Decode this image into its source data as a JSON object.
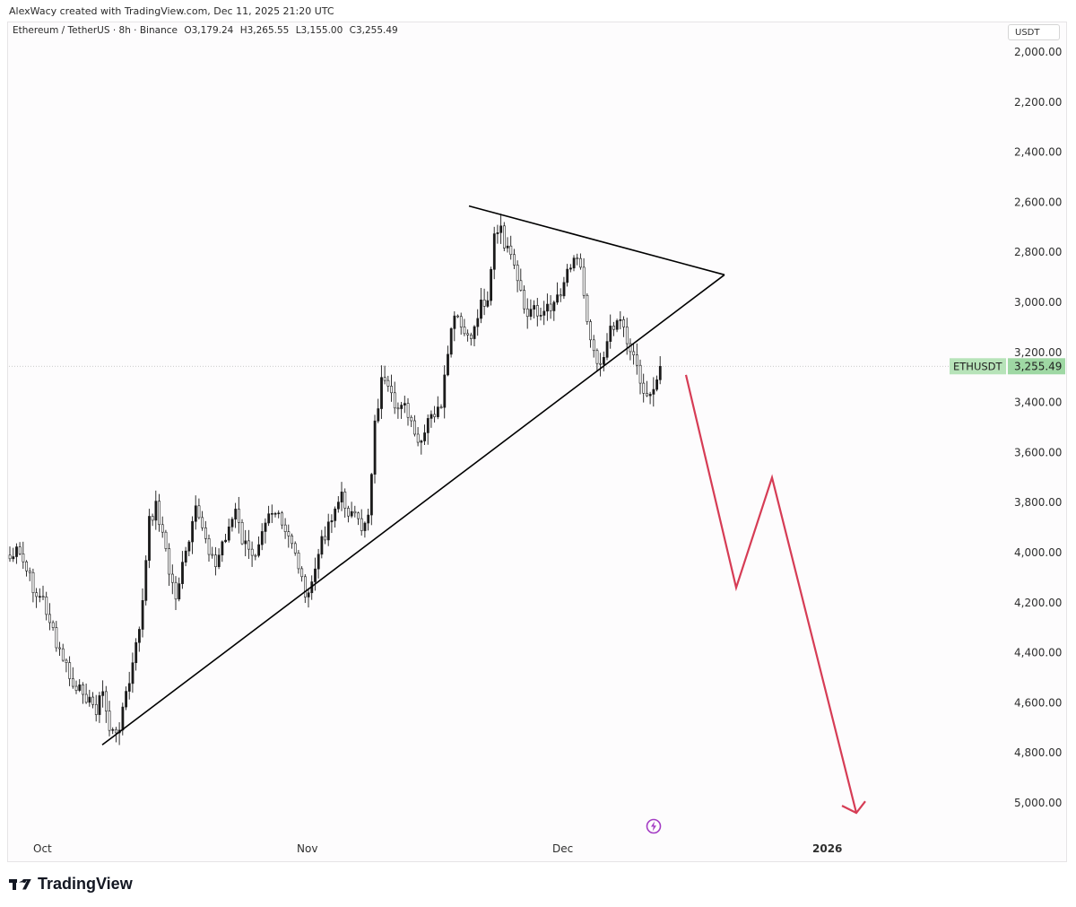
{
  "caption": "AlexWacy created with TradingView.com, Dec 11, 2025 21:20 UTC",
  "legend": {
    "symbol": "Ethereum / TetherUS · 8h · Binance",
    "open": "O3,179.24",
    "high": "H3,265.55",
    "low": "L3,155.00",
    "close": "C3,255.49"
  },
  "currency": "USDT",
  "ticker_label": "ETHUSDT",
  "last_price_label": "3,255.49",
  "brand": "TradingView",
  "colors": {
    "candle": "#1a1a1a",
    "trendline": "#000000",
    "projection": "#d63c55",
    "price_tag": "#9fd8a4",
    "ticker_tag": "#b7e3b9",
    "bolt": "#a43cc4"
  },
  "chart_data": {
    "type": "candlestick",
    "y_axis_inverted": true,
    "ylim": [
      1940,
      5110
    ],
    "y_ticks": [
      "2,000.00",
      "2,200.00",
      "2,400.00",
      "2,600.00",
      "2,800.00",
      "3,000.00",
      "3,200.00",
      "3,400.00",
      "3,600.00",
      "3,800.00",
      "4,000.00",
      "4,200.00",
      "4,400.00",
      "4,600.00",
      "4,800.00",
      "5,000.00"
    ],
    "x_ticks": [
      "Oct",
      "Nov",
      "Dec",
      "2026"
    ],
    "last_price": 3255.49,
    "candles_note": "8h candles from late Sep to Dec 11 2025, read off the inverted price axis",
    "close_path": [
      [
        0,
        4025
      ],
      [
        1,
        4000
      ],
      [
        2,
        4040
      ],
      [
        3,
        4105
      ],
      [
        4,
        4170
      ],
      [
        5,
        4190
      ],
      [
        6,
        4270
      ],
      [
        7,
        4380
      ],
      [
        8,
        4420
      ],
      [
        9,
        4500
      ],
      [
        10,
        4570
      ],
      [
        11,
        4540
      ],
      [
        12,
        4600
      ],
      [
        13,
        4620
      ],
      [
        14,
        4560
      ],
      [
        15,
        4700
      ],
      [
        16,
        4740
      ],
      [
        17,
        4620
      ],
      [
        18,
        4520
      ],
      [
        19,
        4380
      ],
      [
        20,
        4200
      ],
      [
        21,
        3880
      ],
      [
        22,
        3810
      ],
      [
        23,
        3920
      ],
      [
        24,
        4080
      ],
      [
        25,
        4170
      ],
      [
        26,
        4060
      ],
      [
        27,
        3960
      ],
      [
        28,
        3840
      ],
      [
        29,
        3890
      ],
      [
        30,
        3980
      ],
      [
        31,
        4060
      ],
      [
        32,
        3960
      ],
      [
        33,
        3900
      ],
      [
        34,
        3840
      ],
      [
        35,
        3950
      ],
      [
        36,
        4000
      ],
      [
        37,
        3990
      ],
      [
        38,
        3890
      ],
      [
        39,
        3830
      ],
      [
        40,
        3840
      ],
      [
        41,
        3900
      ],
      [
        42,
        3950
      ],
      [
        43,
        3990
      ],
      [
        44,
        4110
      ],
      [
        45,
        4190
      ],
      [
        46,
        4060
      ],
      [
        47,
        3960
      ],
      [
        48,
        3880
      ],
      [
        49,
        3820
      ],
      [
        50,
        3780
      ],
      [
        51,
        3830
      ],
      [
        52,
        3870
      ],
      [
        53,
        3900
      ],
      [
        54,
        3840
      ],
      [
        55,
        3490
      ],
      [
        56,
        3320
      ],
      [
        57,
        3360
      ],
      [
        58,
        3420
      ],
      [
        59,
        3390
      ],
      [
        60,
        3460
      ],
      [
        61,
        3540
      ],
      [
        62,
        3580
      ],
      [
        63,
        3480
      ],
      [
        64,
        3440
      ],
      [
        65,
        3440
      ],
      [
        66,
        3200
      ],
      [
        67,
        3060
      ],
      [
        68,
        3100
      ],
      [
        69,
        3160
      ],
      [
        70,
        3100
      ],
      [
        71,
        3000
      ],
      [
        72,
        2980
      ],
      [
        73,
        2740
      ],
      [
        74,
        2720
      ],
      [
        75,
        2800
      ],
      [
        76,
        2870
      ],
      [
        77,
        2980
      ],
      [
        78,
        3060
      ],
      [
        79,
        3010
      ],
      [
        80,
        3050
      ],
      [
        81,
        3030
      ],
      [
        82,
        2990
      ],
      [
        83,
        2950
      ],
      [
        84,
        2870
      ],
      [
        85,
        2800
      ],
      [
        86,
        2860
      ],
      [
        87,
        3060
      ],
      [
        88,
        3190
      ],
      [
        89,
        3240
      ],
      [
        90,
        3160
      ],
      [
        91,
        3080
      ],
      [
        92,
        3060
      ],
      [
        93,
        3150
      ],
      [
        94,
        3210
      ],
      [
        95,
        3300
      ],
      [
        96,
        3400
      ],
      [
        97,
        3350
      ],
      [
        98,
        3210
      ]
    ],
    "overlays": [
      {
        "kind": "trendline",
        "name": "",
        "from": [
          "early Oct",
          4768
        ],
        "to": [
          "~Dec 24",
          2890
        ]
      },
      {
        "kind": "trendline",
        "name": "",
        "from": [
          "~Nov 24",
          2615
        ],
        "to": [
          "~Dec 24",
          2890
        ]
      },
      {
        "kind": "projection-arrow",
        "name": "",
        "points": [
          [
            "~Dec 13",
            3290
          ],
          [
            "~Dec 19",
            4140
          ],
          [
            "~Dec 24",
            3700
          ],
          [
            "~Jan 03",
            5040
          ]
        ]
      }
    ]
  }
}
